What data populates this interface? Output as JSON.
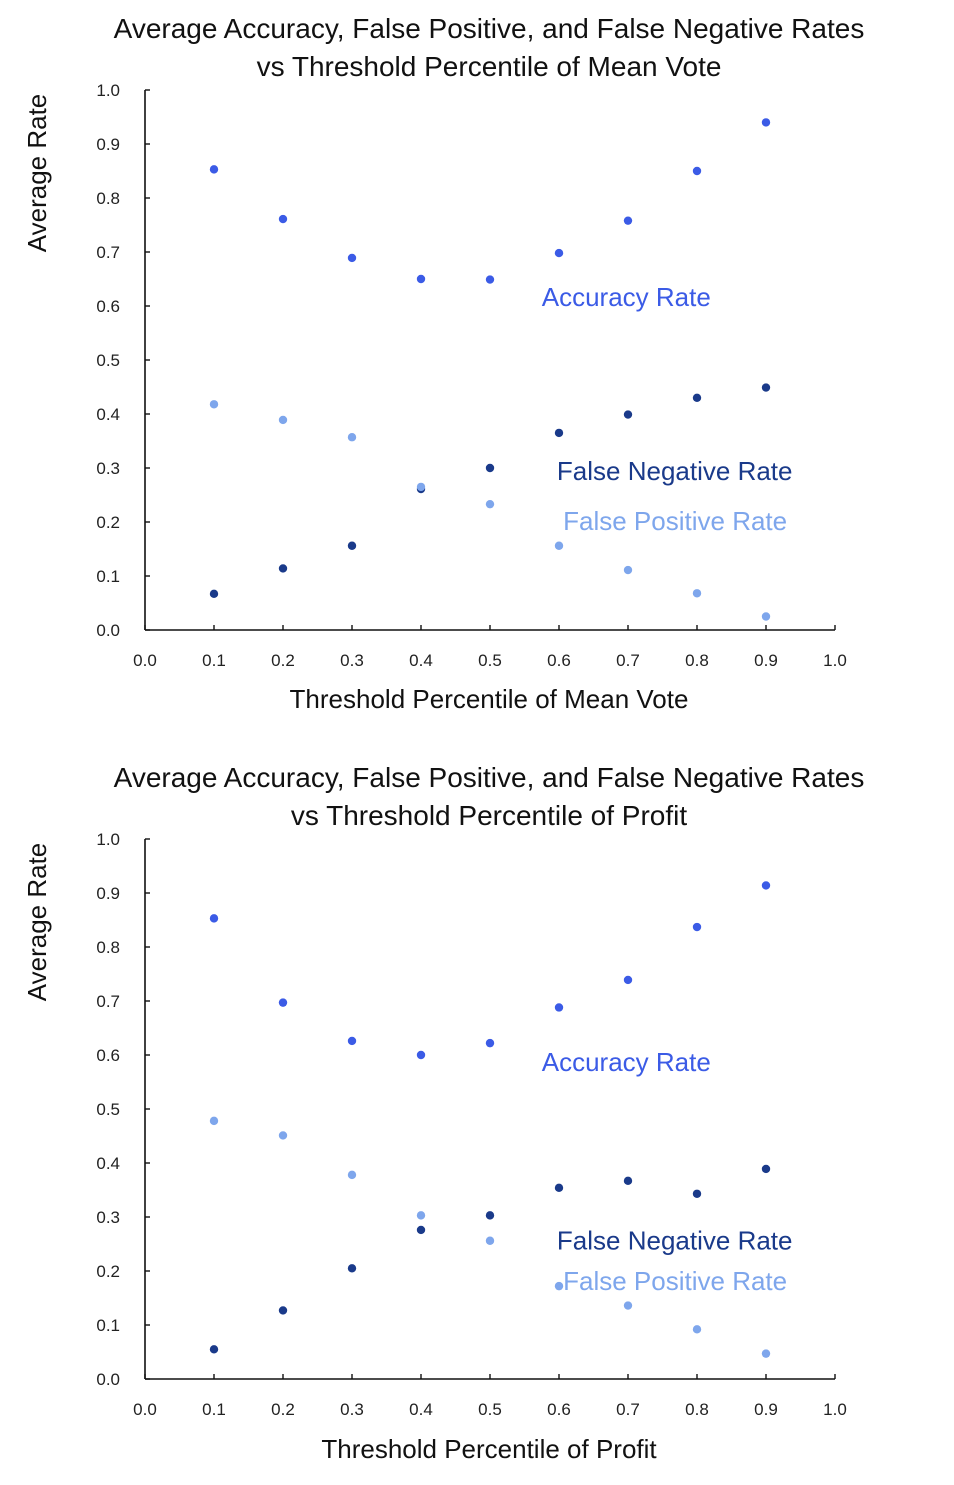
{
  "colors": {
    "accuracy": "#3b5be6",
    "false_negative": "#1a3a8a",
    "false_positive": "#7ea6ec",
    "axis": "#111111"
  },
  "chart_data": [
    {
      "type": "scatter",
      "title_line1": "Average Accuracy, False Positive, and False Negative Rates",
      "title_line2": "vs Threshold Percentile of Mean Vote",
      "xlabel": "Threshold Percentile of Mean Vote",
      "ylabel": "Average Rate",
      "xlim": [
        0.0,
        1.0
      ],
      "ylim": [
        0.0,
        1.0
      ],
      "x_ticks": [
        "0.0",
        "0.1",
        "0.2",
        "0.3",
        "0.4",
        "0.5",
        "0.6",
        "0.7",
        "0.8",
        "0.9",
        "1.0"
      ],
      "y_ticks": [
        "0.0",
        "0.1",
        "0.2",
        "0.3",
        "0.4",
        "0.5",
        "0.6",
        "0.7",
        "0.8",
        "0.9",
        "1.0"
      ],
      "grid": false,
      "x": [
        0.1,
        0.2,
        0.3,
        0.4,
        0.5,
        0.6,
        0.7,
        0.8,
        0.9
      ],
      "series": [
        {
          "key": "accuracy",
          "label": "Accuracy Rate",
          "values": [
            0.853,
            0.761,
            0.689,
            0.65,
            0.649,
            0.698,
            0.758,
            0.85,
            0.94
          ]
        },
        {
          "key": "false_negative",
          "label": "False Negative Rate",
          "values": [
            0.067,
            0.114,
            0.156,
            0.261,
            0.3,
            0.365,
            0.399,
            0.43,
            0.449
          ]
        },
        {
          "key": "false_positive",
          "label": "False Positive Rate",
          "values": [
            0.418,
            0.389,
            0.357,
            0.265,
            0.233,
            0.156,
            0.111,
            0.068,
            0.025
          ]
        }
      ],
      "annotations": [
        {
          "key": "accuracy",
          "text": "Accuracy Rate",
          "x": 0.575,
          "y": 0.6
        },
        {
          "key": "false_negative",
          "text": "False Negative Rate",
          "x": 0.597,
          "y": 0.278
        },
        {
          "key": "false_positive",
          "text": "False Positive Rate",
          "x": 0.606,
          "y": 0.185
        }
      ]
    },
    {
      "type": "scatter",
      "title_line1": "Average Accuracy, False Positive, and False Negative Rates",
      "title_line2": "vs Threshold Percentile of Profit",
      "xlabel": "Threshold Percentile of Profit",
      "ylabel": "Average Rate",
      "xlim": [
        0.0,
        1.0
      ],
      "ylim": [
        0.0,
        1.0
      ],
      "x_ticks": [
        "0.0",
        "0.1",
        "0.2",
        "0.3",
        "0.4",
        "0.5",
        "0.6",
        "0.7",
        "0.8",
        "0.9",
        "1.0"
      ],
      "y_ticks": [
        "0.0",
        "0.1",
        "0.2",
        "0.3",
        "0.4",
        "0.5",
        "0.6",
        "0.7",
        "0.8",
        "0.9",
        "1.0"
      ],
      "grid": false,
      "x": [
        0.1,
        0.2,
        0.3,
        0.4,
        0.5,
        0.6,
        0.7,
        0.8,
        0.9
      ],
      "series": [
        {
          "key": "accuracy",
          "label": "Accuracy Rate",
          "values": [
            0.853,
            0.697,
            0.626,
            0.6,
            0.622,
            0.688,
            0.739,
            0.837,
            0.914
          ]
        },
        {
          "key": "false_negative",
          "label": "False Negative Rate",
          "values": [
            0.055,
            0.127,
            0.205,
            0.276,
            0.303,
            0.354,
            0.367,
            0.343,
            0.389
          ]
        },
        {
          "key": "false_positive",
          "label": "False Positive Rate",
          "values": [
            0.478,
            0.451,
            0.378,
            0.303,
            0.256,
            0.172,
            0.136,
            0.092,
            0.047
          ]
        }
      ],
      "annotations": [
        {
          "key": "accuracy",
          "text": "Accuracy Rate",
          "x": 0.575,
          "y": 0.57
        },
        {
          "key": "false_negative",
          "text": "False Negative Rate",
          "x": 0.597,
          "y": 0.24
        },
        {
          "key": "false_positive",
          "text": "False Positive Rate",
          "x": 0.606,
          "y": 0.165
        }
      ]
    }
  ]
}
